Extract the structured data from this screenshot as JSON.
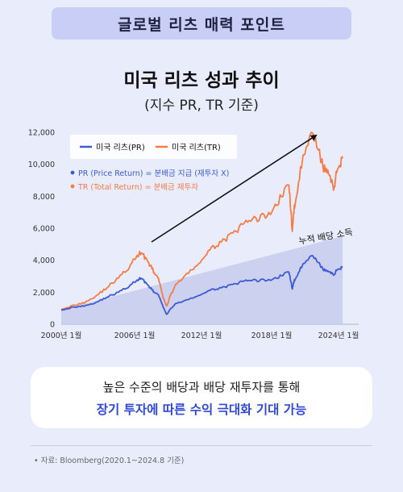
{
  "header": {
    "title": "글로벌 리츠 매력 포인트"
  },
  "chart_data": {
    "type": "line",
    "title": "미국 리츠 성과 추이",
    "subtitle": "(지수 PR, TR 기준)",
    "xlabel": "",
    "ylabel": "",
    "x_ticks": [
      "2000년 1월",
      "2006년 1월",
      "2012년 1월",
      "2018년 1월",
      "2024년 1월"
    ],
    "y_ticks": [
      "0",
      "2,000",
      "4,000",
      "6,000",
      "8,000",
      "10,000",
      "12,000"
    ],
    "ylim": [
      0,
      12000
    ],
    "xlim": [
      2000.0,
      2026.0
    ],
    "grid": false,
    "legend_position": "top-left",
    "series": [
      {
        "name": "미국 리츠(PR)",
        "color": "#3a5bd4",
        "x": [
          2000.0,
          2001.0,
          2002.0,
          2003.0,
          2004.0,
          2005.0,
          2006.0,
          2006.5,
          2007.0,
          2007.5,
          2008.0,
          2008.5,
          2008.9,
          2009.2,
          2009.5,
          2010.0,
          2011.0,
          2012.0,
          2013.0,
          2014.0,
          2015.0,
          2016.0,
          2017.0,
          2018.0,
          2019.0,
          2019.9,
          2020.2,
          2020.4,
          2021.0,
          2022.0,
          2022.8,
          2023.3,
          2023.8,
          2024.2,
          2024.6
        ],
        "y": [
          900,
          1050,
          1150,
          1350,
          1700,
          2000,
          2400,
          2700,
          2900,
          2500,
          2100,
          1800,
          1100,
          600,
          900,
          1300,
          1500,
          1800,
          2100,
          2300,
          2450,
          2700,
          2750,
          2750,
          2950,
          3300,
          2200,
          2800,
          3600,
          4300,
          3500,
          3300,
          3100,
          3450,
          3600
        ]
      },
      {
        "name": "미국 리츠(TR)",
        "color": "#f57c45",
        "x": [
          2000.0,
          2001.0,
          2002.0,
          2003.0,
          2004.0,
          2005.0,
          2006.0,
          2006.5,
          2007.0,
          2007.5,
          2008.0,
          2008.5,
          2008.9,
          2009.2,
          2009.5,
          2010.0,
          2011.0,
          2012.0,
          2013.0,
          2014.0,
          2015.0,
          2016.0,
          2017.0,
          2018.0,
          2019.0,
          2019.9,
          2020.2,
          2020.4,
          2021.0,
          2022.0,
          2022.8,
          2023.3,
          2023.8,
          2024.2,
          2024.6
        ],
        "y": [
          950,
          1150,
          1350,
          1750,
          2300,
          2900,
          3600,
          4200,
          4500,
          4000,
          3400,
          2800,
          1700,
          1100,
          1700,
          2500,
          3100,
          3800,
          4600,
          5200,
          5600,
          6300,
          6600,
          6800,
          7700,
          8800,
          5800,
          7500,
          10000,
          12000,
          10000,
          9500,
          8500,
          9800,
          10500
        ]
      }
    ],
    "annotations": [
      "PR (Price Return) = 분배금 지급 (재투자 X)",
      "TR (Total Return) = 분배금 재투자",
      "누적 배당 소득"
    ]
  },
  "message": {
    "line1": "높은 수준의 배당과 배당 재투자를 통해",
    "line2": "장기 투자에 따른 수익 극대화 기대 가능"
  },
  "footer": {
    "source": "자료: Bloomberg(2020.1~2024.8 기준)"
  }
}
